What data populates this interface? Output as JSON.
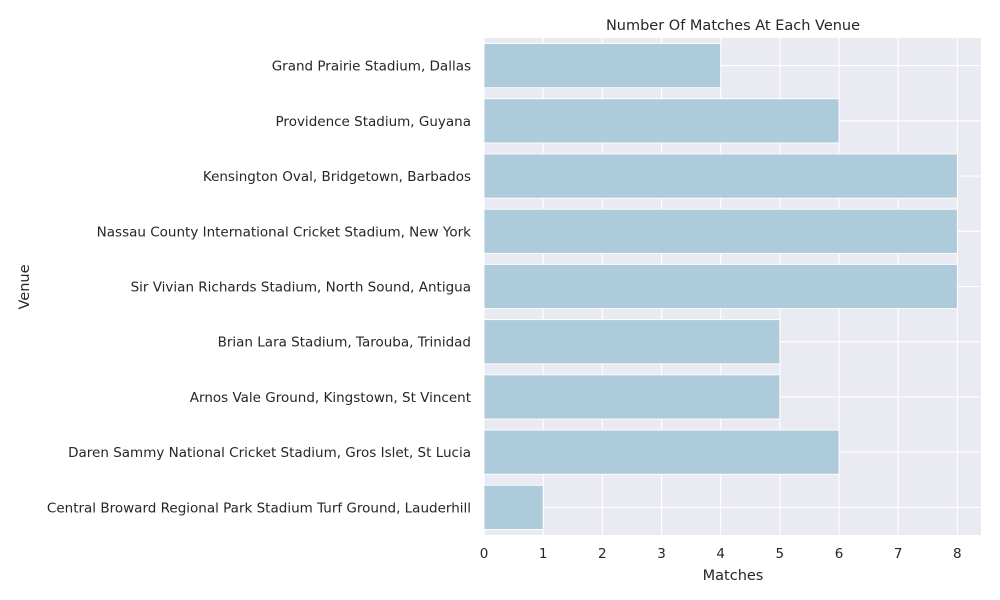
{
  "chart_data": {
    "type": "bar",
    "orientation": "horizontal",
    "title": "Number Of Matches At Each Venue",
    "xlabel": "Matches",
    "ylabel": "Venue",
    "categories": [
      "Grand Prairie Stadium, Dallas",
      "Providence Stadium, Guyana",
      "Kensington Oval, Bridgetown, Barbados",
      "Nassau County International Cricket Stadium, New York",
      "Sir Vivian Richards Stadium, North Sound, Antigua",
      "Brian Lara Stadium, Tarouba, Trinidad",
      "Arnos Vale Ground, Kingstown, St Vincent",
      "Daren Sammy National Cricket Stadium, Gros Islet, St Lucia",
      "Central Broward Regional Park Stadium Turf Ground, Lauderhill"
    ],
    "values": [
      4,
      6,
      8,
      8,
      8,
      5,
      5,
      6,
      1
    ],
    "xticks": [
      "0",
      "1",
      "2",
      "3",
      "4",
      "5",
      "6",
      "7",
      "8"
    ],
    "xlim": [
      0,
      8.4
    ],
    "grid": true,
    "colors": {
      "bar": "#aecbdc",
      "plot_background": "#eaeaf2",
      "grid": "#ffffff",
      "text": "#262626"
    }
  }
}
